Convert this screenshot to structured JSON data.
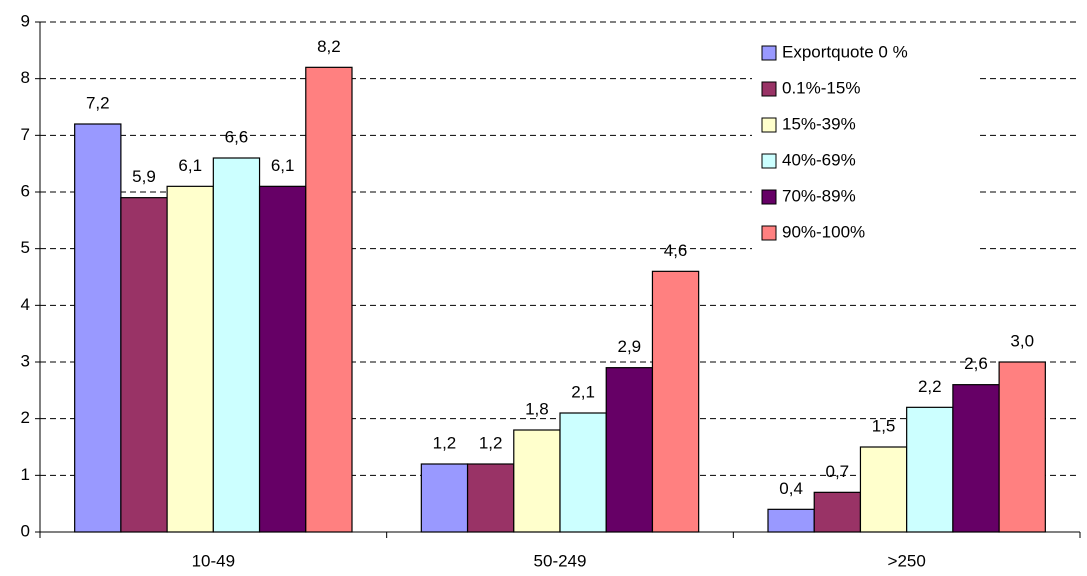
{
  "chart_data": {
    "type": "bar",
    "categories": [
      "10-49",
      "50-249",
      ">250"
    ],
    "series": [
      {
        "name": "Exportquote 0 %",
        "color": "#9999ff",
        "values": [
          7.2,
          1.2,
          0.4
        ],
        "value_labels": [
          "7,2",
          "1,2",
          "0,4"
        ]
      },
      {
        "name": "0.1%-15%",
        "color": "#993366",
        "values": [
          5.9,
          1.2,
          0.7
        ],
        "value_labels": [
          "5,9",
          "1,2",
          "0,7"
        ]
      },
      {
        "name": "15%-39%",
        "color": "#ffffcc",
        "values": [
          6.1,
          1.8,
          1.5
        ],
        "value_labels": [
          "6,1",
          "1,8",
          "1,5"
        ]
      },
      {
        "name": "40%-69%",
        "color": "#ccffff",
        "values": [
          6.6,
          2.1,
          2.2
        ],
        "value_labels": [
          "6,6",
          "2,1",
          "2,2"
        ]
      },
      {
        "name": "70%-89%",
        "color": "#660066",
        "values": [
          6.1,
          2.9,
          2.6
        ],
        "value_labels": [
          "6,1",
          "2,9",
          "2,6"
        ]
      },
      {
        "name": "90%-100%",
        "color": "#ff8080",
        "values": [
          8.2,
          4.6,
          3.0
        ],
        "value_labels": [
          "8,2",
          "4,6",
          "3,0"
        ]
      }
    ],
    "ylim": [
      0,
      9
    ],
    "yticks": [
      0,
      1,
      2,
      3,
      4,
      5,
      6,
      7,
      8,
      9
    ],
    "grid": true,
    "legend": "top-right"
  }
}
